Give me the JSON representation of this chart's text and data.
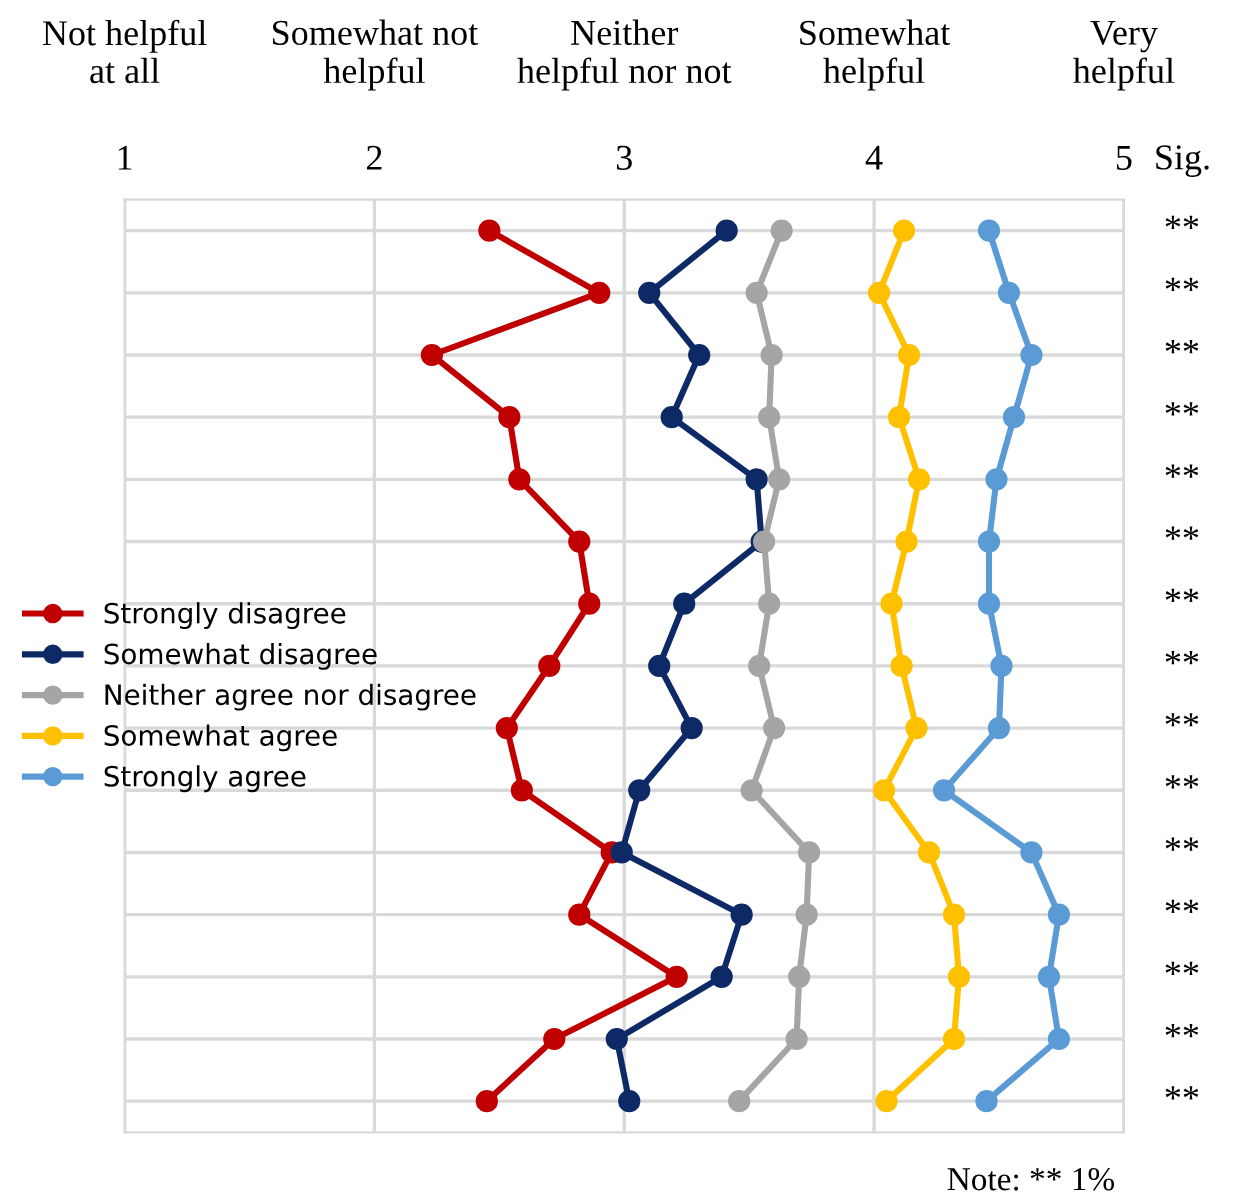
{
  "chart_data": {
    "type": "line",
    "orientation": "horizontal",
    "categories": [
      null,
      null,
      null,
      null,
      null,
      null,
      null,
      null,
      null,
      null,
      null,
      null,
      null,
      null,
      null
    ],
    "xlim": [
      1,
      5
    ],
    "xticks": [
      1,
      2,
      3,
      4,
      5
    ],
    "series": [
      {
        "name": "Strongly disagree",
        "color": "#c00000",
        "values": [
          2.46,
          2.9,
          2.23,
          2.54,
          2.58,
          2.82,
          2.86,
          2.7,
          2.53,
          2.59,
          2.95,
          2.82,
          3.21,
          2.72,
          2.45
        ]
      },
      {
        "name": "Somewhat disagree",
        "color": "#0d2a67",
        "values": [
          3.41,
          3.1,
          3.3,
          3.19,
          3.53,
          3.55,
          3.24,
          3.14,
          3.27,
          3.06,
          2.99,
          3.47,
          3.39,
          2.97,
          3.02
        ]
      },
      {
        "name": "Neither agree nor disagree",
        "color": "#a5a5a5",
        "values": [
          3.63,
          3.53,
          3.59,
          3.58,
          3.62,
          3.56,
          3.58,
          3.54,
          3.6,
          3.51,
          3.74,
          3.73,
          3.7,
          3.69,
          3.46
        ]
      },
      {
        "name": "Somewhat agree",
        "color": "#ffc000",
        "values": [
          4.12,
          4.02,
          4.14,
          4.1,
          4.18,
          4.13,
          4.07,
          4.11,
          4.17,
          4.04,
          4.22,
          4.32,
          4.34,
          4.32,
          4.05
        ]
      },
      {
        "name": "Strongly agree",
        "color": "#5b9bd5",
        "values": [
          4.46,
          4.54,
          4.63,
          4.56,
          4.49,
          4.46,
          4.46,
          4.51,
          4.5,
          4.28,
          4.63,
          4.74,
          4.7,
          4.74,
          4.45
        ]
      }
    ],
    "marker": "circle",
    "grid": true,
    "legend": "left",
    "annotations": [
      "Not helpful\nat all",
      "Somewhat not\nhelpful",
      "Neither\nhelpful nor not",
      "Somewhat\nhelpful",
      "Very\nhelpful",
      "Sig.",
      "**",
      "**",
      "**",
      "**",
      "**",
      "**",
      "**",
      "**",
      "**",
      "**",
      "**",
      "**",
      "**",
      "**",
      "**",
      "Note: ** 1%"
    ]
  }
}
